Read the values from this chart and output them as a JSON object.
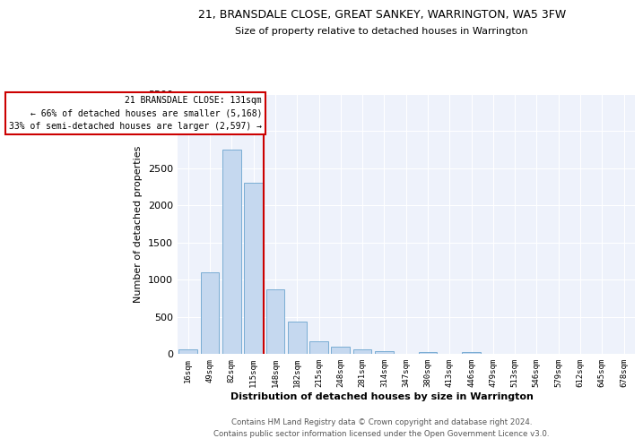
{
  "title": "21, BRANSDALE CLOSE, GREAT SANKEY, WARRINGTON, WA5 3FW",
  "subtitle": "Size of property relative to detached houses in Warrington",
  "xlabel": "Distribution of detached houses by size in Warrington",
  "ylabel": "Number of detached properties",
  "bar_color": "#c5d8ef",
  "bar_edge_color": "#7aadd4",
  "background_color": "#eef2fb",
  "grid_color": "#d0d8e8",
  "categories": [
    "16sqm",
    "49sqm",
    "82sqm",
    "115sqm",
    "148sqm",
    "182sqm",
    "215sqm",
    "248sqm",
    "281sqm",
    "314sqm",
    "347sqm",
    "380sqm",
    "413sqm",
    "446sqm",
    "479sqm",
    "513sqm",
    "546sqm",
    "579sqm",
    "612sqm",
    "645sqm",
    "678sqm"
  ],
  "values": [
    55,
    1100,
    2750,
    2300,
    870,
    430,
    165,
    100,
    60,
    35,
    5,
    30,
    5,
    25,
    0,
    0,
    0,
    0,
    0,
    0,
    0
  ],
  "vline_color": "#cc0000",
  "annotation_title": "21 BRANSDALE CLOSE: 131sqm",
  "annotation_line1": "← 66% of detached houses are smaller (5,168)",
  "annotation_line2": "33% of semi-detached houses are larger (2,597) →",
  "ylim": [
    0,
    3500
  ],
  "yticks": [
    0,
    500,
    1000,
    1500,
    2000,
    2500,
    3000,
    3500
  ],
  "footnote1": "Contains HM Land Registry data © Crown copyright and database right 2024.",
  "footnote2": "Contains public sector information licensed under the Open Government Licence v3.0."
}
